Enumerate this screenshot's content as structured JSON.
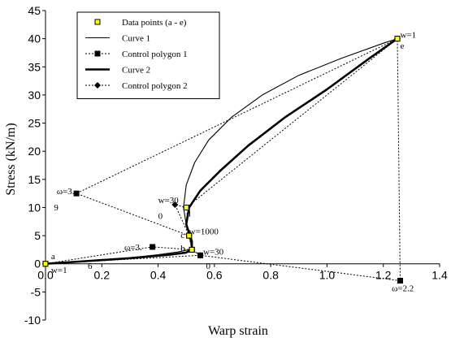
{
  "chart_data": {
    "type": "line",
    "xlabel": "Warp strain",
    "ylabel": "Stress (kN/m)",
    "xlim": [
      0,
      1.4
    ],
    "ylim": [
      -10,
      45
    ],
    "xticks": [
      "0.0",
      "0.2",
      "0.4",
      "0.6",
      "0.8",
      "1.0",
      "1.2",
      "1.4"
    ],
    "yticks": [
      "-10",
      "-5",
      "0",
      "5",
      "10",
      "15",
      "20",
      "25",
      "30",
      "35",
      "40",
      "45"
    ],
    "xtick_values": [
      0,
      0.2,
      0.4,
      0.6,
      0.8,
      1.0,
      1.2,
      1.4
    ],
    "ytick_values": [
      -10,
      -5,
      0,
      5,
      10,
      15,
      20,
      25,
      30,
      35,
      40,
      45
    ],
    "grid": false,
    "legend_position": "top-center",
    "series": [
      {
        "name": "Data points (a - e)",
        "style": "markers",
        "marker": "square-open-yellow",
        "color": "#000000",
        "marker_fill": "#ffff00",
        "x": [
          0.0,
          0.52,
          0.51,
          0.5,
          1.25
        ],
        "y": [
          0.0,
          2.5,
          5.0,
          10.0,
          40.0
        ],
        "labels": [
          "a",
          "b",
          "c",
          "d",
          "e"
        ]
      },
      {
        "name": "Curve 1",
        "style": "line-thin",
        "color": "#000000",
        "x": [
          0.0,
          0.1,
          0.25,
          0.4,
          0.47,
          0.5,
          0.52,
          0.52,
          0.51,
          0.5,
          0.49,
          0.5,
          0.53,
          0.58,
          0.66,
          0.77,
          0.9,
          1.05,
          1.2,
          1.25
        ],
        "y": [
          0.0,
          0.3,
          0.8,
          1.6,
          2.1,
          2.4,
          2.5,
          3.5,
          5.0,
          7.0,
          10.0,
          14.0,
          18.0,
          22.0,
          26.0,
          30.0,
          33.5,
          36.5,
          39.2,
          40.0
        ]
      },
      {
        "name": "Control polygon 1",
        "style": "dotted-squares",
        "color": "#000000",
        "x": [
          0.0,
          0.38,
          0.52,
          0.51,
          0.11,
          1.25,
          1.26,
          0.55,
          0.52
        ],
        "y": [
          0.0,
          3.0,
          2.5,
          5.0,
          12.5,
          40.0,
          -3.0,
          1.5,
          2.5
        ]
      },
      {
        "name": "Curve 2",
        "style": "line-thick",
        "color": "#000000",
        "x": [
          0.0,
          0.12,
          0.3,
          0.44,
          0.5,
          0.52,
          0.52,
          0.5,
          0.51,
          0.55,
          0.62,
          0.72,
          0.85,
          1.0,
          1.15,
          1.25
        ],
        "y": [
          0.0,
          0.4,
          1.0,
          1.6,
          2.0,
          2.5,
          4.0,
          7.0,
          10.0,
          13.0,
          16.5,
          21.0,
          26.0,
          31.0,
          36.5,
          40.0
        ]
      },
      {
        "name": "Control polygon 2",
        "style": "dotted-diamonds",
        "color": "#000000",
        "x": [
          0.0,
          0.55,
          0.52,
          0.51,
          0.46,
          0.5,
          1.25
        ],
        "y": [
          0.0,
          1.5,
          2.5,
          5.0,
          10.5,
          10.0,
          40.0
        ]
      }
    ],
    "annotations": [
      {
        "text": "w=1",
        "x": 1.26,
        "y": 40.2
      },
      {
        "text": "e",
        "x": 1.26,
        "y": 38.2
      },
      {
        "text": "ω=3.",
        "x": 0.04,
        "y": 12.4
      },
      {
        "text": "9",
        "x": 0.03,
        "y": 9.5
      },
      {
        "text": "w=30",
        "x": 0.4,
        "y": 10.8
      },
      {
        "text": "0",
        "x": 0.4,
        "y": 8.0
      },
      {
        "text": "d",
        "x": 0.5,
        "y": 8.4
      },
      {
        "text": "w=1000",
        "x": 0.51,
        "y": 5.2
      },
      {
        "text": "c",
        "x": 0.48,
        "y": 4.6
      },
      {
        "text": "ω=3.",
        "x": 0.28,
        "y": 2.4
      },
      {
        "text": "b",
        "x": 0.48,
        "y": 2.3
      },
      {
        "text": "w=30",
        "x": 0.56,
        "y": 1.6
      },
      {
        "text": "a",
        "x": 0.02,
        "y": 0.8
      },
      {
        "text": "6",
        "x": 0.15,
        "y": -0.9
      },
      {
        "text": "0",
        "x": 0.57,
        "y": -0.9
      },
      {
        "text": "w=1",
        "x": 0.02,
        "y": -1.6
      },
      {
        "text": "ω=2.2",
        "x": 1.23,
        "y": -4.9
      }
    ]
  }
}
